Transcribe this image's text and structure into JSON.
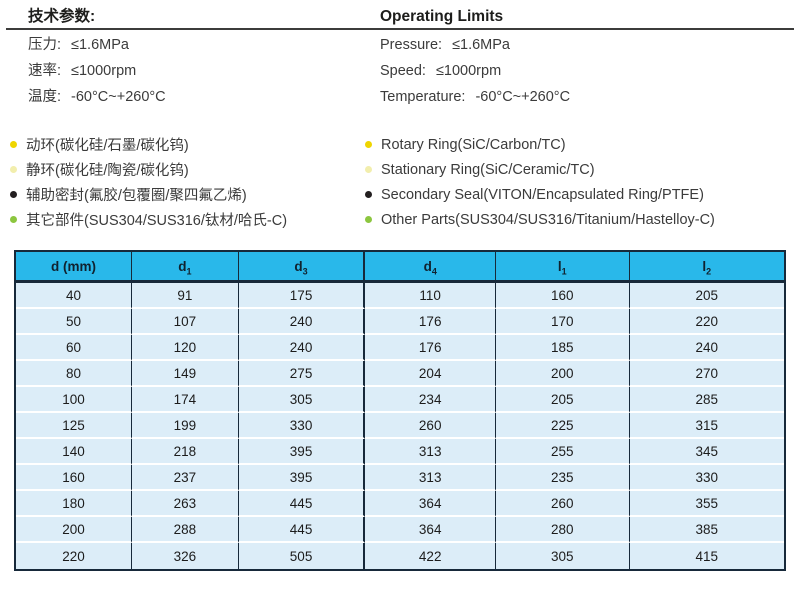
{
  "specs": {
    "title_zh": "技术参数:",
    "title_en": "Operating Limits",
    "left": [
      {
        "label": "压力:",
        "value": "≤1.6MPa"
      },
      {
        "label": "速率:",
        "value": "≤1000rpm"
      },
      {
        "label": "温度:",
        "value": "-60°C~+260°C"
      }
    ],
    "right": [
      {
        "label": "Pressure:",
        "value": "≤1.6MPa"
      },
      {
        "label": "Speed:",
        "value": "≤1000rpm"
      },
      {
        "label": "Temperature:",
        "value": "-60°C~+260°C"
      }
    ]
  },
  "materials": {
    "bullet_colors": [
      "#efd500",
      "#f2eead",
      "#231f20",
      "#8cc63f"
    ],
    "left": [
      "动环(碳化硅/石墨/碳化钨)",
      "静环(碳化硅/陶瓷/碳化钨)",
      "辅助密封(氟胶/包覆圈/聚四氟乙烯)",
      "其它部件(SUS304/SUS316/钛材/哈氏-C)"
    ],
    "right": [
      "Rotary Ring(SiC/Carbon/TC)",
      "Stationary Ring(SiC/Ceramic/TC)",
      "Secondary Seal(VITON/Encapsulated Ring/PTFE)",
      "Other Parts(SUS304/SUS316/Titanium/Hastelloy-C)"
    ]
  },
  "table": {
    "header_bg": "#29b8ea",
    "row_bg": "#dcedf8",
    "border_color": "#17293a",
    "columns": [
      {
        "text": "d (mm)",
        "sub": ""
      },
      {
        "text": "d",
        "sub": "1"
      },
      {
        "text": "d",
        "sub": "3"
      },
      {
        "text": "d",
        "sub": "4"
      },
      {
        "text": "l",
        "sub": "1"
      },
      {
        "text": "l",
        "sub": "2"
      }
    ],
    "rows": [
      [
        40,
        91,
        175,
        110,
        160,
        205
      ],
      [
        50,
        107,
        240,
        176,
        170,
        220
      ],
      [
        60,
        120,
        240,
        176,
        185,
        240
      ],
      [
        80,
        149,
        275,
        204,
        200,
        270
      ],
      [
        100,
        174,
        305,
        234,
        205,
        285
      ],
      [
        125,
        199,
        330,
        260,
        225,
        315
      ],
      [
        140,
        218,
        395,
        313,
        255,
        345
      ],
      [
        160,
        237,
        395,
        313,
        235,
        330
      ],
      [
        180,
        263,
        445,
        364,
        260,
        355
      ],
      [
        200,
        288,
        445,
        364,
        280,
        385
      ],
      [
        220,
        326,
        505,
        422,
        305,
        415
      ]
    ]
  }
}
